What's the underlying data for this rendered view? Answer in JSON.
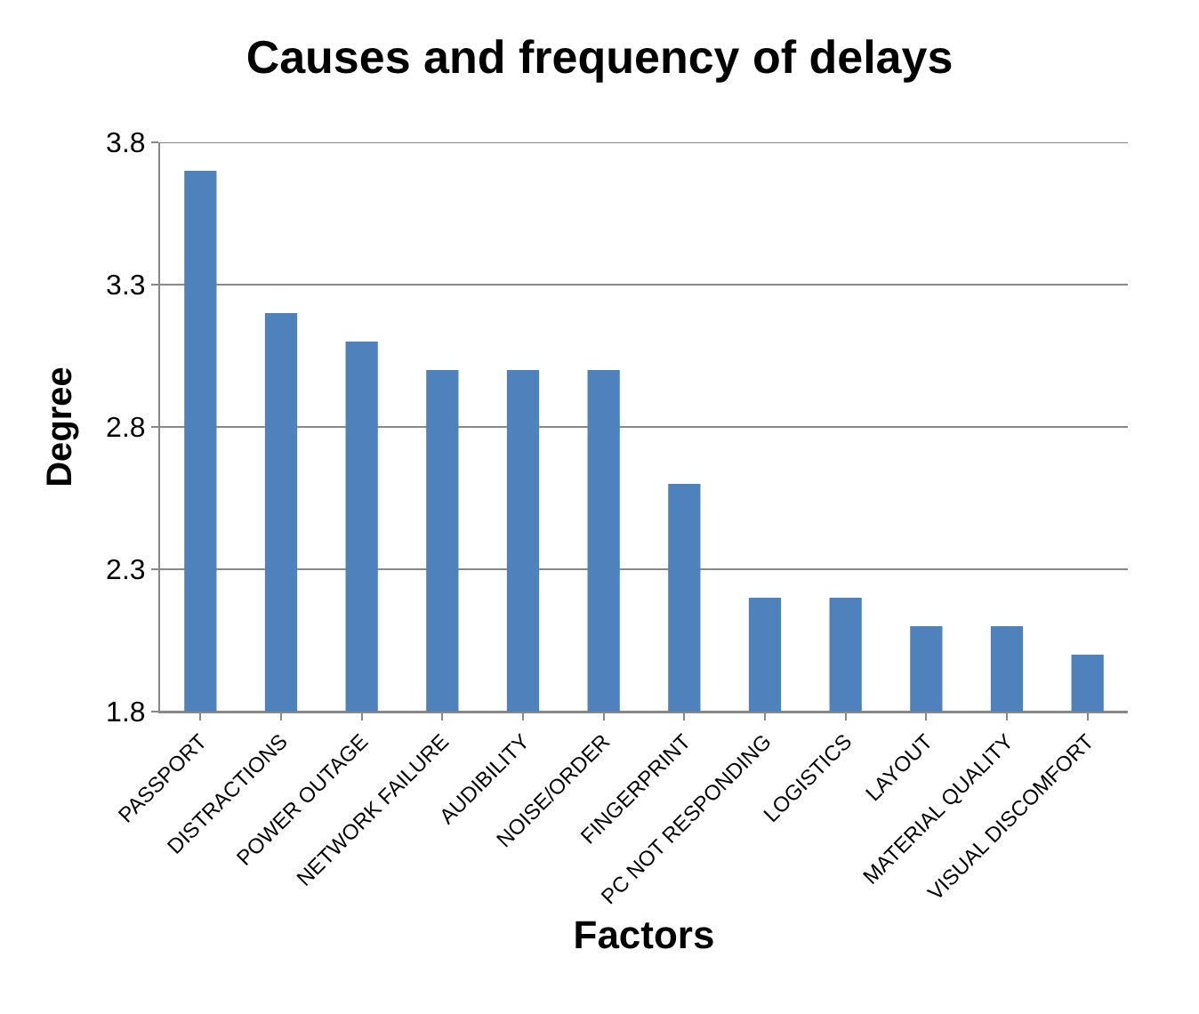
{
  "chart_data": {
    "type": "bar",
    "title": "Causes and frequency of delays",
    "xlabel": "Factors",
    "ylabel": "Degree",
    "categories": [
      "PASSPORT",
      "DISTRACTIONS",
      "POWER OUTAGE",
      "NETWORK FAILURE",
      "AUDIBILITY",
      "NOISE/ORDER",
      "FINGERPRINT",
      "PC NOT RESPONDING",
      "LOGISTICS",
      "LAYOUT",
      "MATERIAL QUALITY",
      "VISUAL DISCOMFORT"
    ],
    "values": [
      3.7,
      3.2,
      3.1,
      3.0,
      3.0,
      3.0,
      2.6,
      2.2,
      2.2,
      2.1,
      2.1,
      2.0
    ],
    "color": "#4f81bd",
    "ylim": [
      1.8,
      3.8
    ],
    "yticks": [
      1.8,
      2.3,
      2.8,
      3.3,
      3.8
    ],
    "grid": "y"
  }
}
